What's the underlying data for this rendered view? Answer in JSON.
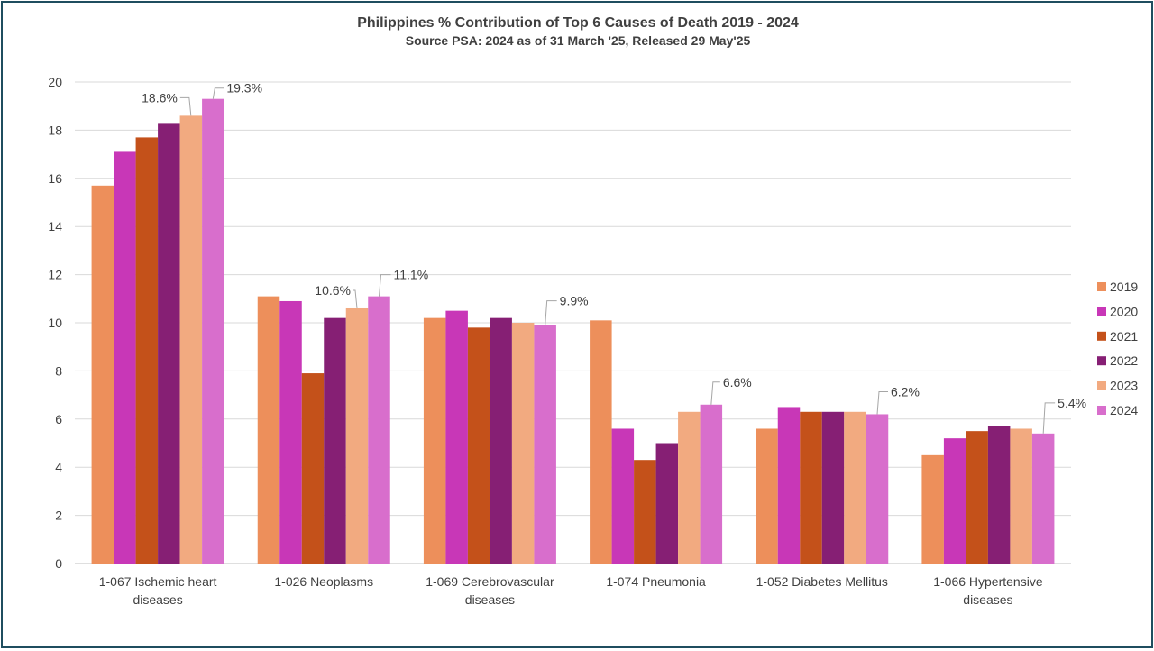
{
  "chart_data": {
    "type": "bar",
    "title": "Philippines  % Contribution  of Top 6 Causes  of Death 2019  - 2024",
    "subtitle": "Source  PSA:  2024 as of 31 March '25, Released  29 May'25",
    "xlabel": "",
    "ylabel": "",
    "ylim": [
      0,
      20
    ],
    "yticks": [
      0,
      2,
      4,
      6,
      8,
      10,
      12,
      14,
      16,
      18,
      20
    ],
    "grid": true,
    "legend_position": "right",
    "categories": [
      [
        "1-067  Ischemic heart",
        "diseases"
      ],
      [
        "1-026  Neoplasms"
      ],
      [
        "1-069  Cerebrovascular",
        "diseases"
      ],
      [
        "1-074  Pneumonia"
      ],
      [
        "1-052  Diabetes Mellitus"
      ],
      [
        "1-066  Hypertensive",
        "diseases"
      ]
    ],
    "series": [
      {
        "name": "2019",
        "color": "#ED8F5B",
        "values": [
          15.7,
          11.1,
          10.2,
          10.1,
          5.6,
          4.5
        ]
      },
      {
        "name": "2020",
        "color": "#C837B7",
        "values": [
          17.1,
          10.9,
          10.5,
          5.6,
          6.5,
          5.2
        ]
      },
      {
        "name": "2021",
        "color": "#C4511A",
        "values": [
          17.7,
          7.9,
          9.8,
          4.3,
          6.3,
          5.5
        ]
      },
      {
        "name": "2022",
        "color": "#861F74",
        "values": [
          18.3,
          10.2,
          10.2,
          5.0,
          6.3,
          5.7
        ]
      },
      {
        "name": "2023",
        "color": "#F2AA80",
        "values": [
          18.6,
          10.6,
          10.0,
          6.3,
          6.3,
          5.6
        ]
      },
      {
        "name": "2024",
        "color": "#D86ECC",
        "values": [
          19.3,
          11.1,
          9.9,
          6.6,
          6.2,
          5.4
        ]
      }
    ],
    "data_labels": [
      {
        "category": 0,
        "series": 4,
        "text": "18.6%"
      },
      {
        "category": 0,
        "series": 5,
        "text": "19.3%"
      },
      {
        "category": 1,
        "series": 4,
        "text": "10.6%"
      },
      {
        "category": 1,
        "series": 5,
        "text": "11.1%"
      },
      {
        "category": 2,
        "series": 5,
        "text": "9.9%"
      },
      {
        "category": 3,
        "series": 5,
        "text": "6.6%"
      },
      {
        "category": 4,
        "series": 5,
        "text": "6.2%"
      },
      {
        "category": 5,
        "series": 5,
        "text": "5.4%"
      }
    ]
  }
}
